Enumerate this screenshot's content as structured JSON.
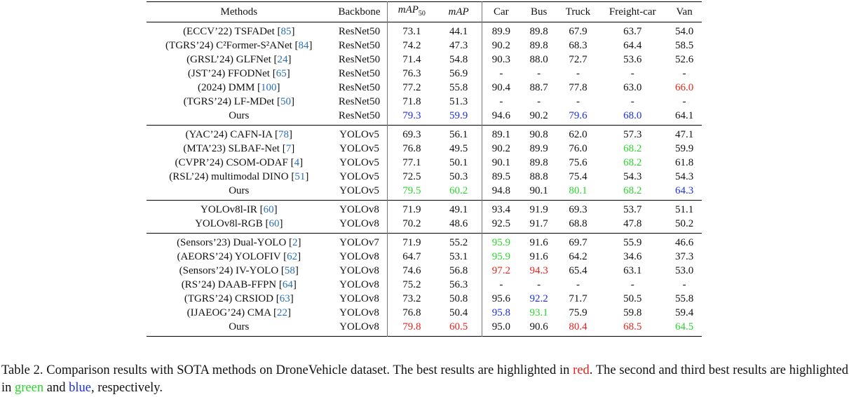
{
  "table": {
    "headers": [
      "Methods",
      "Backbone",
      "mAP50",
      "mAP",
      "Car",
      "Bus",
      "Truck",
      "Freight-car",
      "Van"
    ],
    "groups": [
      [
        {
          "prefix": "(ECCV’22) TSFADet ",
          "ref": "85",
          "backbone": "ResNet50",
          "values": [
            "73.1",
            "44.1",
            "89.9",
            "89.8",
            "67.9",
            "63.7",
            "54.0"
          ],
          "colors": [
            "",
            "",
            "",
            "",
            "",
            "",
            ""
          ]
        },
        {
          "prefix": "(TGRS’24) C²Former-S²ANet ",
          "ref": "84",
          "backbone": "ResNet50",
          "values": [
            "74.2",
            "47.3",
            "90.2",
            "89.8",
            "68.3",
            "64.4",
            "58.5"
          ],
          "colors": [
            "",
            "",
            "",
            "",
            "",
            "",
            ""
          ]
        },
        {
          "prefix": "(GRSL’24) GLFNet ",
          "ref": "24",
          "backbone": "ResNet50",
          "values": [
            "71.4",
            "54.8",
            "90.3",
            "88.0",
            "72.7",
            "53.6",
            "52.6"
          ],
          "colors": [
            "",
            "",
            "",
            "",
            "",
            "",
            ""
          ]
        },
        {
          "prefix": "(JST’24) FFODNet ",
          "ref": "65",
          "backbone": "ResNet50",
          "values": [
            "76.3",
            "56.9",
            "-",
            "-",
            "-",
            "-",
            "-"
          ],
          "colors": [
            "",
            "",
            "",
            "",
            "",
            "",
            ""
          ]
        },
        {
          "prefix": "(2024) DMM ",
          "ref": "100",
          "backbone": "ResNet50",
          "values": [
            "77.2",
            "55.8",
            "90.4",
            "88.7",
            "77.8",
            "63.0",
            "66.0"
          ],
          "colors": [
            "",
            "",
            "",
            "",
            "",
            "",
            "r"
          ]
        },
        {
          "prefix": "(TGRS’24) LF-MDet ",
          "ref": "50",
          "backbone": "ResNet50",
          "values": [
            "71.8",
            "51.3",
            "-",
            "-",
            "-",
            "-",
            "-"
          ],
          "colors": [
            "",
            "",
            "",
            "",
            "",
            "",
            ""
          ]
        },
        {
          "prefix": "Ours",
          "ref": "",
          "backbone": "ResNet50",
          "values": [
            "79.3",
            "59.9",
            "94.6",
            "90.2",
            "79.6",
            "68.0",
            "64.1"
          ],
          "colors": [
            "b",
            "b",
            "",
            "",
            "b",
            "b",
            ""
          ]
        }
      ],
      [
        {
          "prefix": "(YAC’24) CAFN-IA ",
          "ref": "78",
          "backbone": "YOLOv5",
          "values": [
            "69.3",
            "56.1",
            "89.1",
            "90.8",
            "62.0",
            "57.3",
            "47.1"
          ],
          "colors": [
            "",
            "",
            "",
            "",
            "",
            "",
            ""
          ]
        },
        {
          "prefix": "(MTA’23) SLBAF-Net ",
          "ref": "7",
          "backbone": "YOLOv5",
          "values": [
            "76.8",
            "49.5",
            "90.2",
            "89.9",
            "76.0",
            "68.2",
            "59.9"
          ],
          "colors": [
            "",
            "",
            "",
            "",
            "",
            "g",
            ""
          ]
        },
        {
          "prefix": "(CVPR’24) CSOM-ODAF ",
          "ref": "4",
          "backbone": "YOLOv5",
          "values": [
            "77.1",
            "50.1",
            "90.1",
            "89.8",
            "75.6",
            "68.2",
            "61.8"
          ],
          "colors": [
            "",
            "",
            "",
            "",
            "",
            "g",
            ""
          ]
        },
        {
          "prefix": "(RSL’24) multimodal DINO ",
          "ref": "51",
          "backbone": "YOLOv5",
          "values": [
            "72.5",
            "50.3",
            "89.5",
            "88.8",
            "75.4",
            "54.3",
            "54.3"
          ],
          "colors": [
            "",
            "",
            "",
            "",
            "",
            "",
            ""
          ]
        },
        {
          "prefix": "Ours",
          "ref": "",
          "backbone": "YOLOv5",
          "values": [
            "79.5",
            "60.2",
            "94.8",
            "90.1",
            "80.1",
            "68.2",
            "64.3"
          ],
          "colors": [
            "g",
            "g",
            "",
            "",
            "g",
            "g",
            "b"
          ]
        }
      ],
      [
        {
          "prefix": "YOLOv8l-IR ",
          "ref": "60",
          "backbone": "YOLOv8",
          "values": [
            "71.9",
            "49.1",
            "93.4",
            "91.9",
            "69.3",
            "53.7",
            "51.1"
          ],
          "colors": [
            "",
            "",
            "",
            "",
            "",
            "",
            ""
          ]
        },
        {
          "prefix": "YOLOv8l-RGB ",
          "ref": "60",
          "backbone": "YOLOv8",
          "values": [
            "70.2",
            "48.6",
            "92.5",
            "91.7",
            "68.8",
            "47.8",
            "50.2"
          ],
          "colors": [
            "",
            "",
            "",
            "",
            "",
            "",
            ""
          ]
        }
      ],
      [
        {
          "prefix": "(Sensors’23) Dual-YOLO ",
          "ref": "2",
          "backbone": "YOLOv7",
          "values": [
            "71.9",
            "55.2",
            "95.9",
            "91.6",
            "69.7",
            "55.9",
            "46.6"
          ],
          "colors": [
            "",
            "",
            "g",
            "",
            "",
            "",
            ""
          ]
        },
        {
          "prefix": "(AEORS’24) YOLOFIV ",
          "ref": "62",
          "backbone": "YOLOv8",
          "values": [
            "64.7",
            "53.1",
            "95.9",
            "91.6",
            "64.2",
            "34.6",
            "37.3"
          ],
          "colors": [
            "",
            "",
            "g",
            "",
            "",
            "",
            ""
          ]
        },
        {
          "prefix": "(Sensors’24) IV-YOLO ",
          "ref": "58",
          "backbone": "YOLOv8",
          "values": [
            "74.6",
            "56.8",
            "97.2",
            "94.3",
            "65.4",
            "63.1",
            "53.0"
          ],
          "colors": [
            "",
            "",
            "r",
            "r",
            "",
            "",
            ""
          ]
        },
        {
          "prefix": "(RS’24) DAAB-FFPN ",
          "ref": "64",
          "backbone": "YOLOv8",
          "values": [
            "75.2",
            "56.3",
            "-",
            "-",
            "-",
            "-",
            "-"
          ],
          "colors": [
            "",
            "",
            "",
            "",
            "",
            "",
            ""
          ]
        },
        {
          "prefix": "(TGRS’24) CRSIOD ",
          "ref": "63",
          "backbone": "YOLOv8",
          "values": [
            "73.2",
            "50.8",
            "95.6",
            "92.2",
            "71.7",
            "50.5",
            "55.8"
          ],
          "colors": [
            "",
            "",
            "",
            "b",
            "",
            "",
            ""
          ]
        },
        {
          "prefix": "(IJAEOG’24) CMA ",
          "ref": "22",
          "backbone": "YOLOv8",
          "values": [
            "76.8",
            "50.4",
            "95.8",
            "93.1",
            "75.9",
            "59.8",
            "59.4"
          ],
          "colors": [
            "",
            "",
            "b",
            "g",
            "",
            "",
            ""
          ]
        },
        {
          "prefix": "Ours",
          "ref": "",
          "backbone": "YOLOv8",
          "values": [
            "79.8",
            "60.5",
            "95.0",
            "90.6",
            "80.4",
            "68.5",
            "64.5"
          ],
          "colors": [
            "r",
            "r",
            "",
            "",
            "r",
            "r",
            "g"
          ]
        }
      ]
    ]
  },
  "caption": {
    "part1": "Table 2.  Comparison results with SOTA methods on DroneVehicle dataset.  The best results are highlighted in ",
    "red": "red",
    "part2": ".  The second and third best results are highlighted in ",
    "green": "green",
    "and": " and ",
    "blue": "blue",
    "part3": ", respectively."
  },
  "colors": {
    "red": "#e8221b",
    "green": "#2ad62a",
    "blue": "#1b2de8",
    "ref": "#2a6fb6"
  }
}
